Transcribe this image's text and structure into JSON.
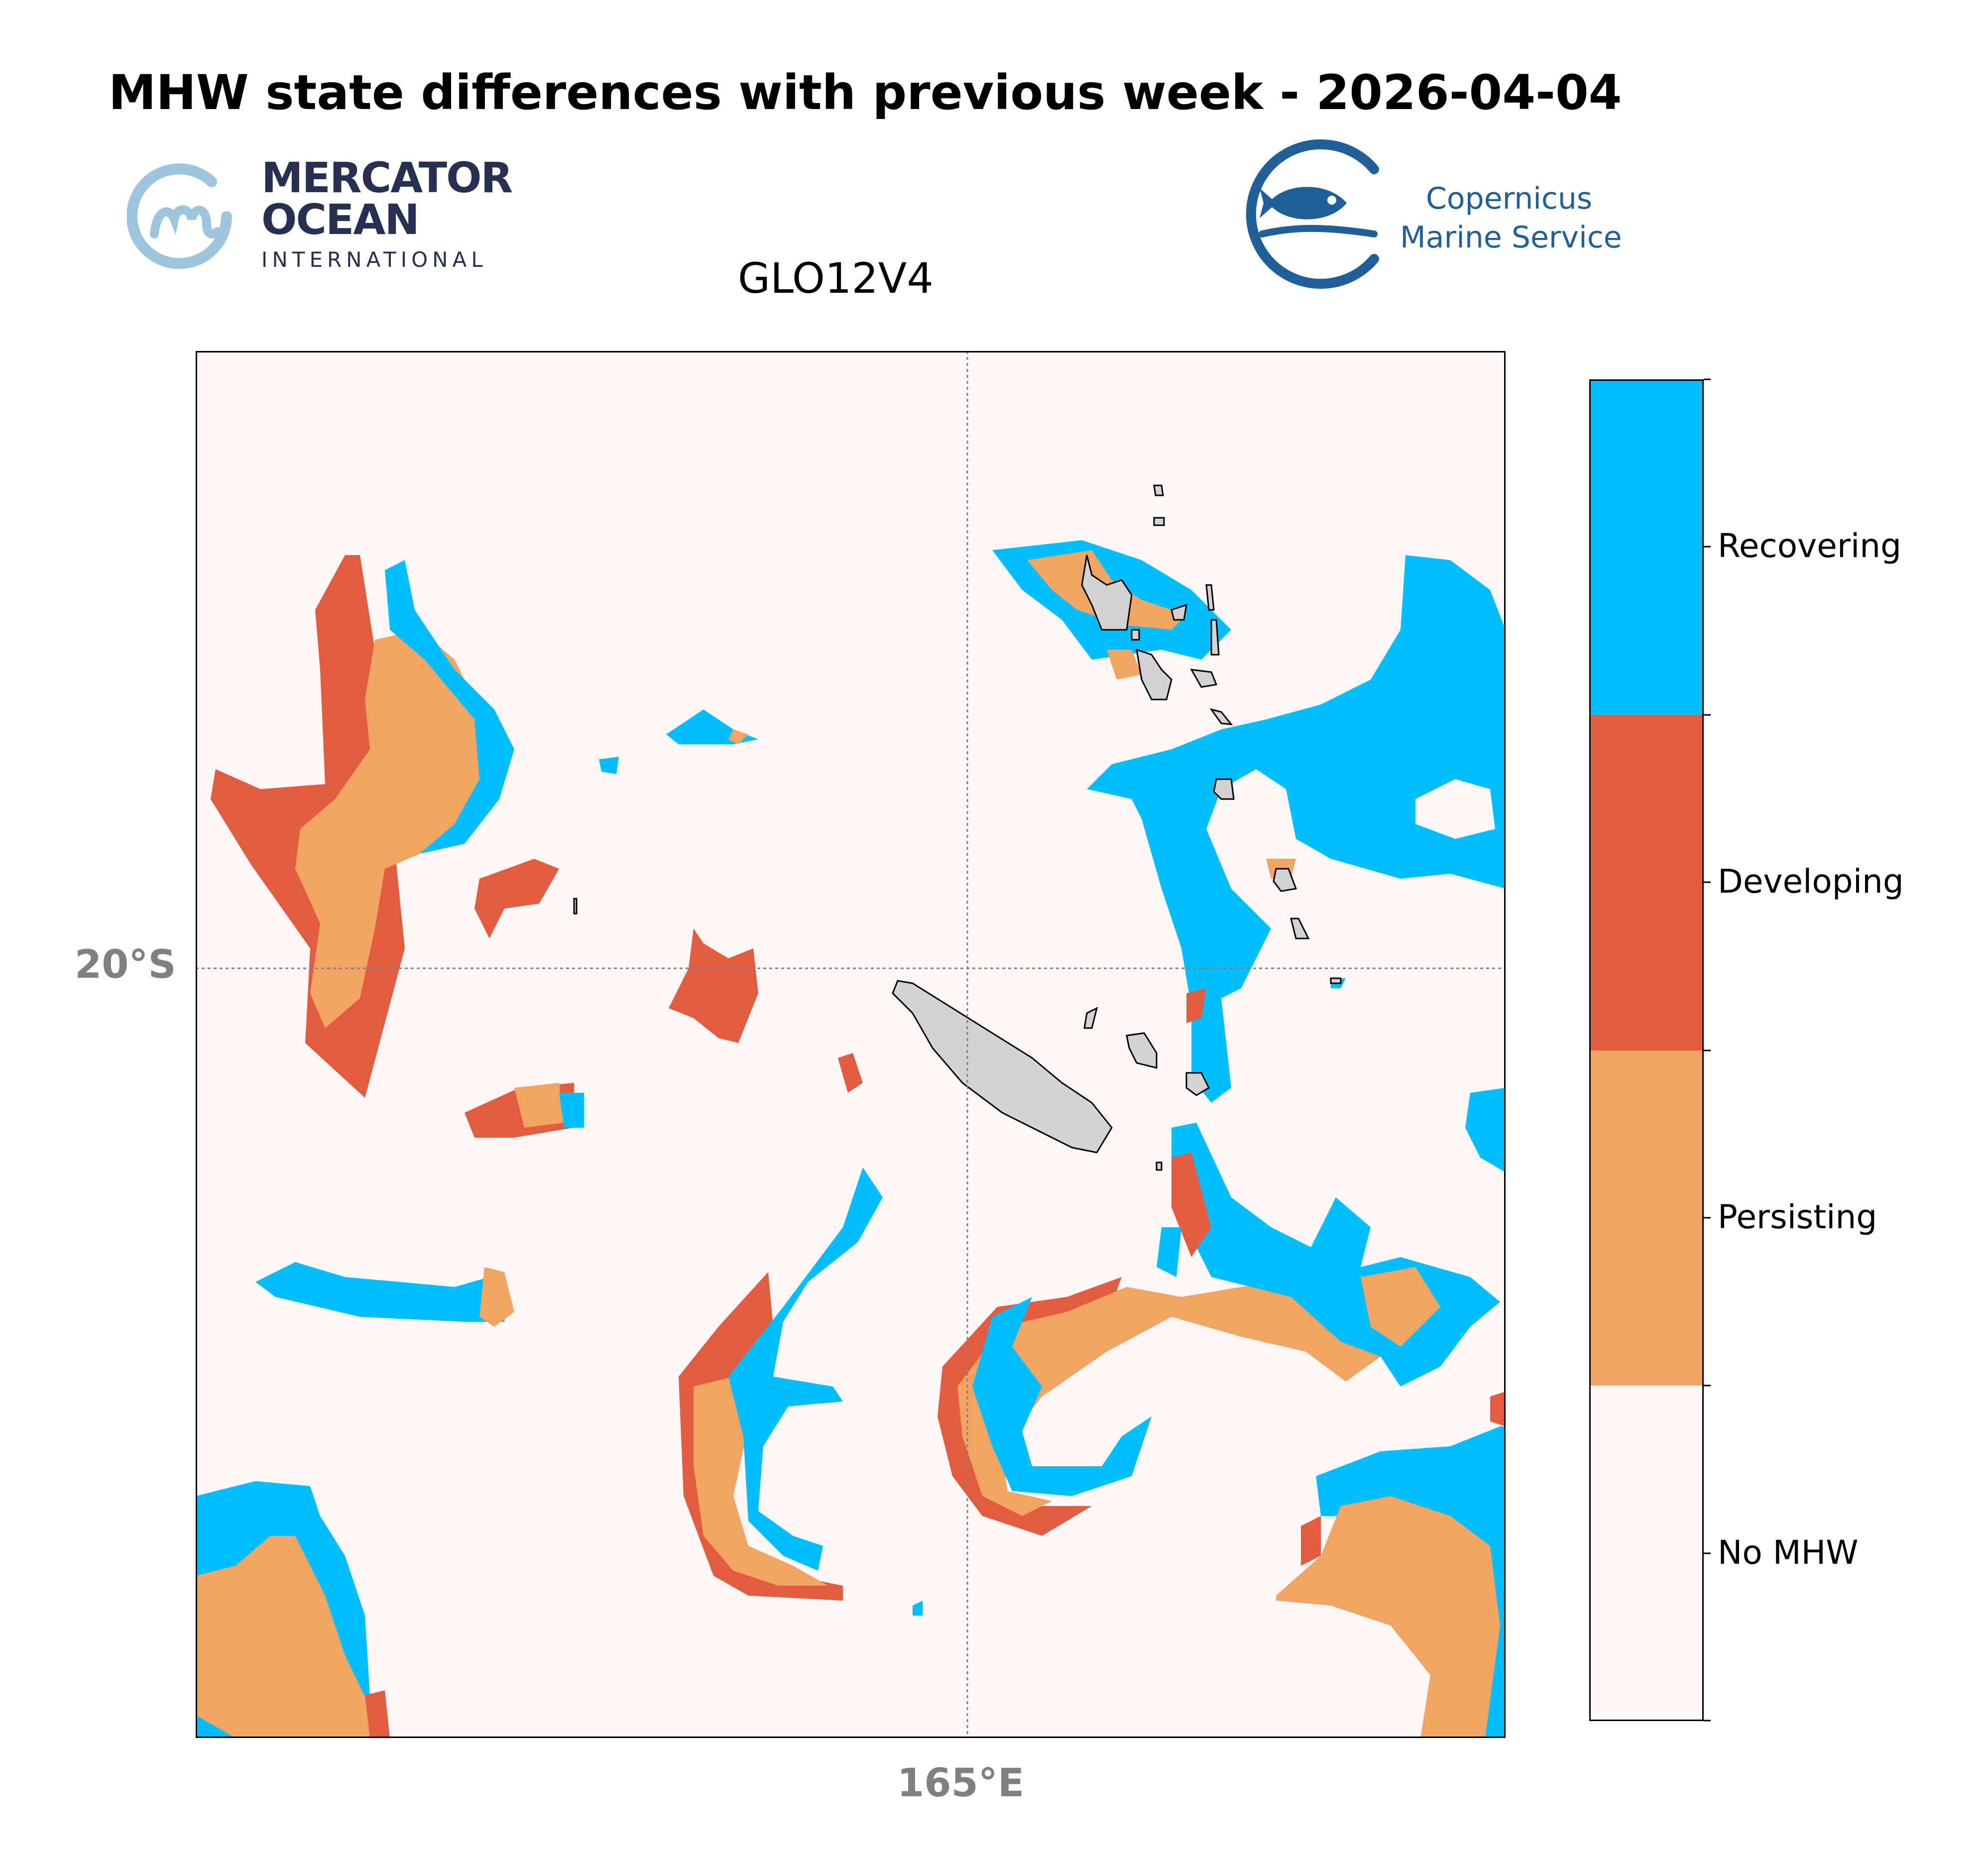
{
  "header": {
    "title": "MHW state differences with previous week - 2026-04-04",
    "subtitle": "GLO12V4"
  },
  "logos": {
    "mercator": {
      "line1": "MERCATOR",
      "line2": "OCEAN",
      "line3": "INTERNATIONAL",
      "color": "#263050",
      "mark_color": "#9ec5de"
    },
    "copernicus": {
      "line1": "Copernicus",
      "line2": "Marine Service",
      "color": "#1f5f9a"
    }
  },
  "map": {
    "gridlines": {
      "latitude_label": "20°S",
      "longitude_label": "165°E"
    },
    "land_color": "#d3d3d3",
    "background_color": "#fdf8f7"
  },
  "legend": {
    "categories": [
      {
        "label": "Recovering",
        "color": "#00bfff"
      },
      {
        "label": "Developing",
        "color": "#e45c3f"
      },
      {
        "label": "Persisting",
        "color": "#f2a462"
      },
      {
        "label": "No MHW",
        "color": "#fdf8f7"
      }
    ]
  }
}
